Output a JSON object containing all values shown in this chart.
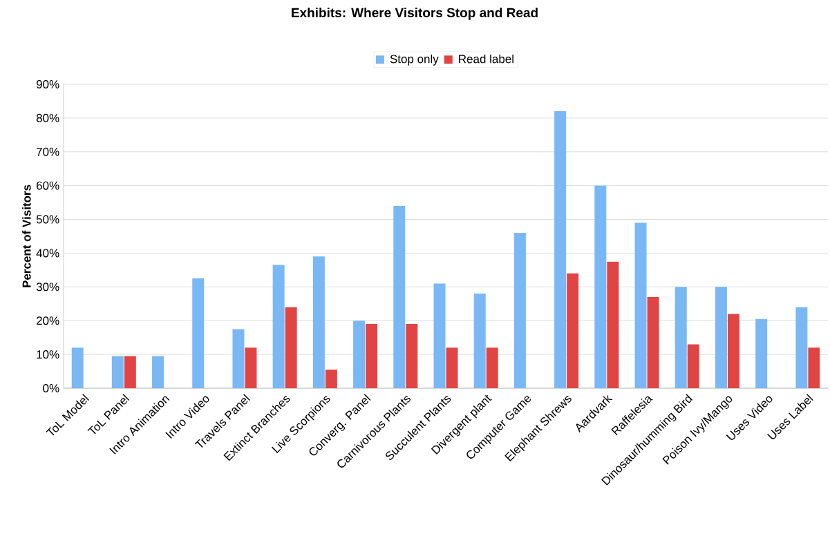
{
  "chart_data": {
    "type": "bar",
    "title": "Exhibits: Where Visitors Stop and Read",
    "ylabel": "Percent of Visitors",
    "categories": [
      "ToL Model",
      "ToL Panel",
      "Intro Animation",
      "Intro Video",
      "Travels Panel",
      "Extinct Branches",
      "Live Scorpions",
      "Converg. Panel",
      "Carnivorous Plants",
      "Succulent Plants",
      "Divergent plant",
      "Computer Game",
      "Elephant Shrews",
      "Aardvark",
      "Raffelesia",
      "Dinosaur/humming Bird",
      "Poison Ivy/Mango",
      "Uses Video",
      "Uses Label"
    ],
    "series": [
      {
        "name": "Stop only",
        "color": "#7ab8f5",
        "values": [
          12,
          9.5,
          9.5,
          32.5,
          17.5,
          36.5,
          39,
          20,
          54,
          31,
          28,
          46,
          82,
          60,
          49,
          30,
          30,
          20.5,
          24
        ]
      },
      {
        "name": "Read label",
        "color": "#e04543",
        "values": [
          null,
          9.5,
          null,
          null,
          12,
          24,
          5.5,
          19,
          19,
          12,
          12,
          null,
          34,
          37.5,
          27,
          13,
          22,
          null,
          12
        ]
      }
    ],
    "ylim": [
      0,
      90
    ],
    "yticks": [
      {
        "value": 0,
        "label": "0%"
      },
      {
        "value": 10,
        "label": "10%"
      },
      {
        "value": 20,
        "label": "20%"
      },
      {
        "value": 30,
        "label": "30%"
      },
      {
        "value": 40,
        "label": "40%"
      },
      {
        "value": 50,
        "label": "50%"
      },
      {
        "value": 60,
        "label": "60%"
      },
      {
        "value": 70,
        "label": "70%"
      },
      {
        "value": 80,
        "label": "80%"
      },
      {
        "value": 90,
        "label": "90%"
      }
    ],
    "grid": "y",
    "legend": "top"
  }
}
